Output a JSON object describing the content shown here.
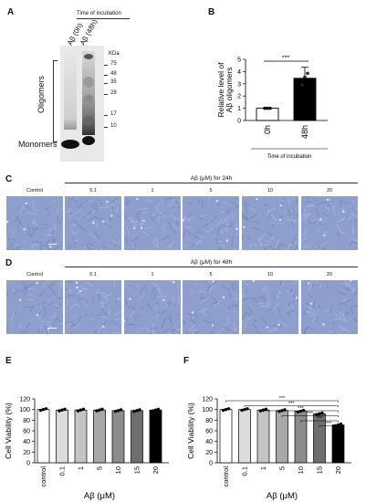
{
  "panels": {
    "A": "A",
    "B": "B",
    "C": "C",
    "D": "D",
    "E": "E",
    "F": "F"
  },
  "blot": {
    "header": "Time of incubation",
    "lanes": [
      "Aβ (0h)",
      "Aβ (48h)"
    ],
    "kda_label": "KDa",
    "markers": [
      "75",
      "48",
      "35",
      "28",
      "17",
      "10"
    ],
    "oligomers_label": "Oligomers",
    "monomers_label": "Monomers"
  },
  "micro": {
    "c_header": "Aβ (μM) for 24h",
    "d_header": "Aβ (μM) for 48h",
    "labels": [
      "Control",
      "0.1",
      "1",
      "5",
      "10",
      "20"
    ]
  },
  "chart_data": [
    {
      "panel": "B",
      "type": "bar",
      "categories": [
        "0h",
        "48h"
      ],
      "values": [
        1.0,
        3.45
      ],
      "error": [
        0.03,
        0.9
      ],
      "points": [
        [
          1.0,
          1.0,
          1.0
        ],
        [
          2.9,
          3.55,
          3.85
        ]
      ],
      "xlabel": "Time of incubation",
      "ylabel": "Relative level of Aβ oligomers",
      "ylim": [
        0,
        5
      ],
      "yticks": [
        "0",
        "1",
        "2",
        "3",
        "4",
        "5"
      ],
      "significance": "***",
      "colors": [
        "#ffffff",
        "#000000"
      ]
    },
    {
      "panel": "E",
      "type": "bar",
      "categories": [
        "control",
        "0.1",
        "1",
        "5",
        "10",
        "15",
        "20"
      ],
      "values": [
        100,
        99,
        99,
        99,
        98,
        98,
        99
      ],
      "xlabel": "Aβ (μM)",
      "ylabel": "Cell Viability (%)",
      "ylim": [
        0,
        120
      ],
      "yticks": [
        "0",
        "20",
        "40",
        "60",
        "80",
        "100",
        "120"
      ],
      "colors": [
        "#ffffff",
        "#dcdcdc",
        "#c4c4c4",
        "#a8a8a8",
        "#8c8c8c",
        "#6e6e6e",
        "#000000"
      ]
    },
    {
      "panel": "F",
      "type": "bar",
      "categories": [
        "control",
        "0.1",
        "1",
        "5",
        "10",
        "15",
        "20"
      ],
      "values": [
        100,
        100,
        99,
        98,
        97,
        92,
        71
      ],
      "xlabel": "Aβ (μM)",
      "ylabel": "Cell Viability (%)",
      "ylim": [
        0,
        120
      ],
      "yticks": [
        "0",
        "20",
        "40",
        "60",
        "80",
        "100",
        "120"
      ],
      "significance": [
        "***",
        "***",
        "***",
        "***",
        "***",
        "***"
      ],
      "colors": [
        "#ffffff",
        "#dcdcdc",
        "#c4c4c4",
        "#a8a8a8",
        "#8c8c8c",
        "#6e6e6e",
        "#000000"
      ]
    }
  ]
}
